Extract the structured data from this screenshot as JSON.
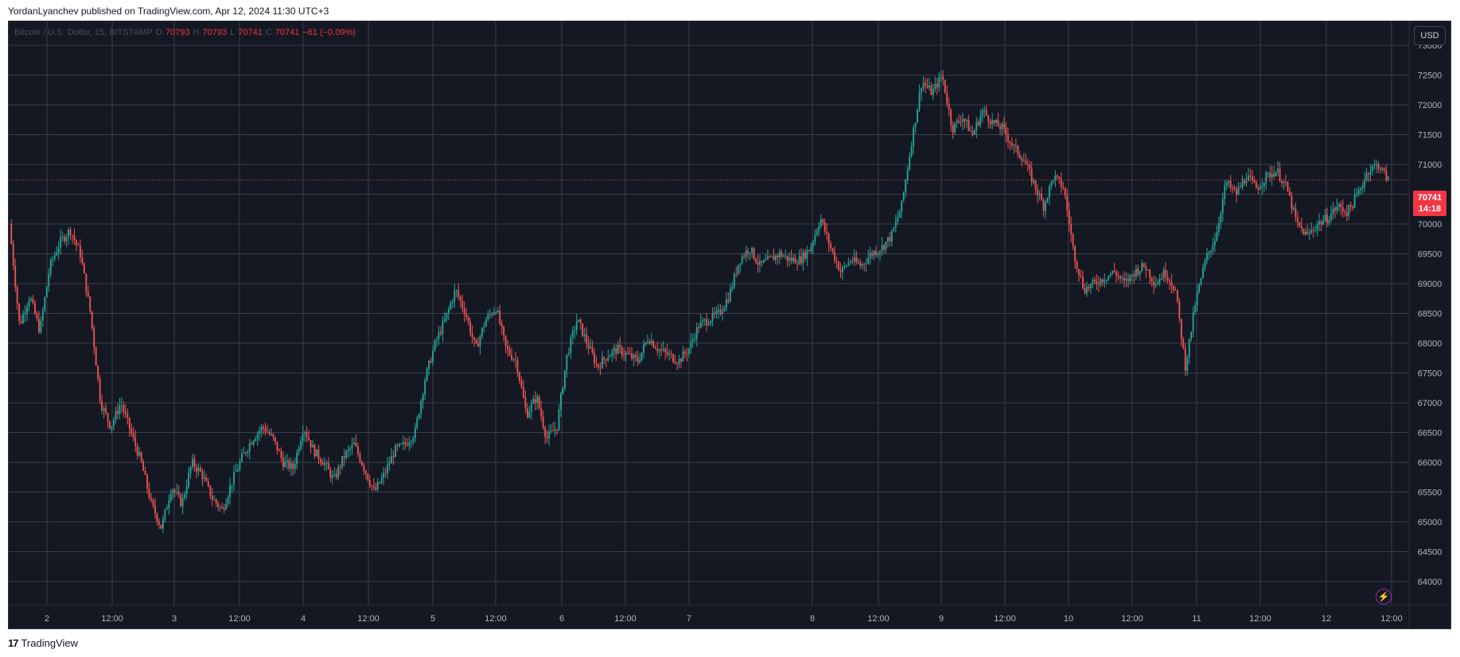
{
  "header": {
    "publish_text": "YordanLyanchev published on TradingView.com, Apr 12, 2024 11:30 UTC+3"
  },
  "legend": {
    "symbol": "Bitcoin / U.S. Dollar, 15, BITSTAMP",
    "o_label": "O",
    "o_value": "70793",
    "h_label": "H",
    "h_value": "70793",
    "l_label": "L",
    "l_value": "70741",
    "c_label": "C",
    "c_value": "70741",
    "change": "−61 (−0.09%)"
  },
  "toolbar": {
    "currency": "USD"
  },
  "last_price": {
    "price": "70741",
    "countdown": "14:18"
  },
  "footer": {
    "logo_mark": "17",
    "logo_text": "TradingView"
  },
  "colors": {
    "background": "#141823",
    "grid": "#3a3e4a",
    "up": "#26a69a",
    "down": "#ef5350",
    "accent_badge": "#f23645",
    "lightning": "#9c27b0"
  },
  "icons": {
    "lightning": "lightning-icon",
    "logo": "tradingview-logo-icon"
  },
  "chart_data": {
    "type": "candlestick",
    "title": "Bitcoin / U.S. Dollar, 15, BITSTAMP",
    "xlabel": "",
    "ylabel": "",
    "currency": "USD",
    "ylim": [
      63600,
      73400
    ],
    "yticks": [
      64000,
      64500,
      65000,
      65500,
      66000,
      66500,
      67000,
      67500,
      68000,
      68500,
      69000,
      69500,
      70000,
      70500,
      71000,
      71500,
      72000,
      72500,
      73000
    ],
    "xticks": [
      "2",
      "12:00",
      "3",
      "12:00",
      "4",
      "12:00",
      "5",
      "12:00",
      "6",
      "12:00",
      "7",
      "8",
      "12:00",
      "9",
      "12:00",
      "10",
      "12:00",
      "11",
      "12:00",
      "12",
      "12:00"
    ],
    "last_price": 70741,
    "grid": true,
    "price_path": [
      [
        0,
        70000
      ],
      [
        5,
        68300
      ],
      [
        10,
        68800
      ],
      [
        15,
        68200
      ],
      [
        20,
        69300
      ],
      [
        25,
        69700
      ],
      [
        30,
        69900
      ],
      [
        35,
        69500
      ],
      [
        40,
        68500
      ],
      [
        45,
        67000
      ],
      [
        50,
        66600
      ],
      [
        55,
        67000
      ],
      [
        60,
        66500
      ],
      [
        65,
        66000
      ],
      [
        70,
        65300
      ],
      [
        75,
        64900
      ],
      [
        80,
        65600
      ],
      [
        85,
        65300
      ],
      [
        90,
        66000
      ],
      [
        95,
        65800
      ],
      [
        100,
        65400
      ],
      [
        105,
        65200
      ],
      [
        110,
        65700
      ],
      [
        115,
        66100
      ],
      [
        120,
        66400
      ],
      [
        125,
        66600
      ],
      [
        130,
        66400
      ],
      [
        135,
        66000
      ],
      [
        140,
        65900
      ],
      [
        145,
        66600
      ],
      [
        150,
        66200
      ],
      [
        155,
        66000
      ],
      [
        160,
        65700
      ],
      [
        165,
        66100
      ],
      [
        170,
        66300
      ],
      [
        175,
        65900
      ],
      [
        180,
        65500
      ],
      [
        185,
        65800
      ],
      [
        190,
        66200
      ],
      [
        195,
        66300
      ],
      [
        200,
        66500
      ],
      [
        205,
        67400
      ],
      [
        210,
        68000
      ],
      [
        215,
        68400
      ],
      [
        220,
        68900
      ],
      [
        225,
        68500
      ],
      [
        230,
        67900
      ],
      [
        235,
        68400
      ],
      [
        240,
        68600
      ],
      [
        245,
        67900
      ],
      [
        250,
        67700
      ],
      [
        255,
        66800
      ],
      [
        260,
        67100
      ],
      [
        265,
        66400
      ],
      [
        270,
        66600
      ],
      [
        275,
        67800
      ],
      [
        280,
        68400
      ],
      [
        285,
        68000
      ],
      [
        290,
        67600
      ],
      [
        295,
        67800
      ],
      [
        300,
        67900
      ],
      [
        305,
        67800
      ],
      [
        310,
        67700
      ],
      [
        315,
        68100
      ],
      [
        320,
        67900
      ],
      [
        325,
        67800
      ],
      [
        330,
        67700
      ],
      [
        335,
        67900
      ],
      [
        340,
        68300
      ],
      [
        345,
        68400
      ],
      [
        350,
        68500
      ],
      [
        355,
        68800
      ],
      [
        360,
        69400
      ],
      [
        365,
        69600
      ],
      [
        370,
        69300
      ],
      [
        375,
        69400
      ],
      [
        380,
        69500
      ],
      [
        385,
        69400
      ],
      [
        390,
        69400
      ],
      [
        395,
        69600
      ],
      [
        400,
        70100
      ],
      [
        405,
        69600
      ],
      [
        410,
        69200
      ],
      [
        415,
        69400
      ],
      [
        420,
        69300
      ],
      [
        425,
        69500
      ],
      [
        430,
        69600
      ],
      [
        435,
        69800
      ],
      [
        440,
        70300
      ],
      [
        445,
        71400
      ],
      [
        450,
        72400
      ],
      [
        455,
        72200
      ],
      [
        460,
        72500
      ],
      [
        465,
        71600
      ],
      [
        470,
        71800
      ],
      [
        475,
        71500
      ],
      [
        480,
        71900
      ],
      [
        485,
        71700
      ],
      [
        490,
        71600
      ],
      [
        495,
        71300
      ],
      [
        500,
        71100
      ],
      [
        505,
        70700
      ],
      [
        510,
        70300
      ],
      [
        515,
        70800
      ],
      [
        520,
        70600
      ],
      [
        525,
        69500
      ],
      [
        530,
        68900
      ],
      [
        535,
        69000
      ],
      [
        540,
        69100
      ],
      [
        545,
        69200
      ],
      [
        550,
        69000
      ],
      [
        555,
        69200
      ],
      [
        560,
        69300
      ],
      [
        565,
        69000
      ],
      [
        570,
        69200
      ],
      [
        575,
        68900
      ],
      [
        580,
        67600
      ],
      [
        585,
        68700
      ],
      [
        590,
        69400
      ],
      [
        595,
        69800
      ],
      [
        600,
        70700
      ],
      [
        605,
        70500
      ],
      [
        610,
        70800
      ],
      [
        615,
        70600
      ],
      [
        620,
        70800
      ],
      [
        625,
        70900
      ],
      [
        630,
        70600
      ],
      [
        635,
        70000
      ],
      [
        640,
        69800
      ],
      [
        645,
        70000
      ],
      [
        650,
        70100
      ],
      [
        655,
        70300
      ],
      [
        660,
        70200
      ],
      [
        665,
        70500
      ],
      [
        670,
        70900
      ],
      [
        675,
        71000
      ],
      [
        680,
        70741
      ]
    ]
  }
}
